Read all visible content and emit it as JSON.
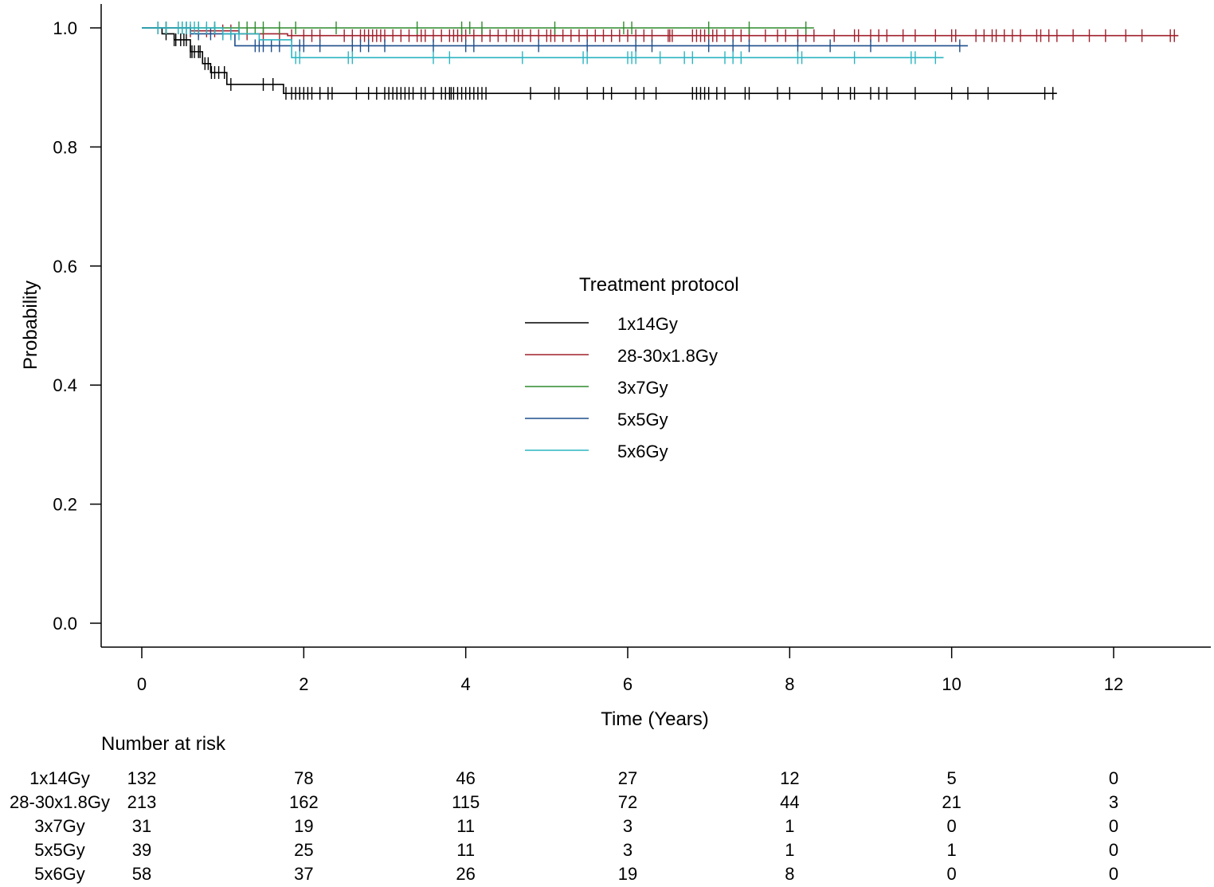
{
  "chart_data": {
    "type": "line",
    "subtype": "kaplan-meier step",
    "xlabel": "Time (Years)",
    "ylabel": "Probability",
    "xlim": [
      -0.5,
      13.2
    ],
    "ylim": [
      -0.04,
      1.04
    ],
    "xticks": [
      0,
      2,
      4,
      6,
      8,
      10,
      12
    ],
    "yticks": [
      0.0,
      0.2,
      0.4,
      0.6,
      0.8,
      1.0
    ],
    "x_tick_labels": [
      "0",
      "2",
      "4",
      "6",
      "8",
      "10",
      "12"
    ],
    "y_tick_labels": [
      "0.0",
      "0.2",
      "0.4",
      "0.6",
      "0.8",
      "1.0"
    ],
    "grid": false,
    "legend": {
      "title": "Treatment protocol",
      "placement": "center"
    },
    "series": [
      {
        "name": "1x14Gy",
        "color": "#000000",
        "steps": [
          [
            0,
            1.0
          ],
          [
            0.25,
            0.99
          ],
          [
            0.4,
            0.98
          ],
          [
            0.6,
            0.96
          ],
          [
            0.75,
            0.94
          ],
          [
            0.85,
            0.925
          ],
          [
            1.05,
            0.905
          ],
          [
            1.75,
            0.89
          ],
          [
            11.3,
            0.89
          ]
        ],
        "censor_times": [
          0.2,
          0.3,
          0.4,
          0.42,
          0.48,
          0.52,
          0.55,
          0.6,
          0.62,
          0.65,
          0.7,
          0.72,
          0.78,
          0.82,
          0.86,
          0.9,
          0.95,
          1.02,
          1.1,
          1.5,
          1.62,
          1.78,
          1.85,
          1.9,
          1.95,
          2.0,
          2.05,
          2.1,
          2.2,
          2.3,
          2.35,
          2.65,
          2.8,
          2.9,
          3.0,
          3.05,
          3.1,
          3.15,
          3.2,
          3.25,
          3.3,
          3.35,
          3.45,
          3.5,
          3.6,
          3.7,
          3.75,
          3.8,
          3.82,
          3.85,
          3.9,
          3.95,
          4.0,
          4.05,
          4.1,
          4.15,
          4.2,
          4.25,
          4.8,
          5.1,
          5.15,
          5.5,
          5.7,
          5.8,
          6.1,
          6.2,
          6.35,
          6.8,
          6.85,
          6.9,
          6.95,
          7.0,
          7.1,
          7.2,
          7.45,
          7.5,
          7.85,
          8.0,
          8.4,
          8.6,
          8.75,
          8.8,
          9.0,
          9.1,
          9.2,
          9.55,
          10.0,
          10.2,
          10.45,
          11.15,
          11.25
        ]
      },
      {
        "name": "28-30x1.8Gy",
        "color": "#a0202c",
        "steps": [
          [
            0,
            1.0
          ],
          [
            0.6,
            0.995
          ],
          [
            1.2,
            0.99
          ],
          [
            1.8,
            0.987
          ],
          [
            12.8,
            0.987
          ]
        ],
        "censor_times": [
          0.3,
          0.45,
          0.6,
          0.7,
          0.8,
          0.9,
          1.0,
          1.1,
          1.3,
          1.5,
          1.7,
          1.85,
          2.0,
          2.1,
          2.2,
          2.5,
          2.6,
          2.7,
          2.75,
          2.8,
          2.85,
          2.9,
          2.95,
          3.0,
          3.1,
          3.2,
          3.3,
          3.4,
          3.45,
          3.5,
          3.6,
          3.7,
          3.8,
          3.85,
          3.9,
          3.95,
          4.0,
          4.1,
          4.2,
          4.3,
          4.4,
          4.5,
          4.6,
          4.65,
          4.7,
          4.8,
          4.9,
          5.0,
          5.05,
          5.1,
          5.2,
          5.3,
          5.4,
          5.5,
          5.6,
          5.7,
          5.8,
          5.9,
          6.0,
          6.1,
          6.2,
          6.3,
          6.5,
          6.52,
          6.55,
          6.8,
          6.85,
          6.9,
          6.95,
          7.0,
          7.05,
          7.1,
          7.2,
          7.3,
          7.4,
          7.5,
          7.7,
          7.85,
          7.95,
          8.1,
          8.2,
          8.3,
          8.55,
          8.8,
          8.85,
          9.0,
          9.1,
          9.2,
          9.4,
          9.55,
          9.8,
          10.0,
          10.05,
          10.3,
          10.4,
          10.5,
          10.55,
          10.65,
          10.75,
          10.85,
          11.05,
          11.1,
          11.2,
          11.3,
          11.5,
          11.7,
          11.9,
          12.15,
          12.35,
          12.7,
          12.75
        ]
      },
      {
        "name": "3x7Gy",
        "color": "#2e8b2e",
        "steps": [
          [
            0,
            1.0
          ],
          [
            8.3,
            1.0
          ]
        ],
        "censor_times": [
          0.3,
          0.5,
          0.7,
          0.9,
          1.2,
          1.3,
          1.4,
          1.5,
          1.7,
          1.9,
          2.4,
          3.4,
          3.95,
          4.05,
          4.2,
          5.1,
          5.95,
          6.05,
          7.0,
          7.5,
          8.2
        ]
      },
      {
        "name": "5x5Gy",
        "color": "#1f4e8c",
        "steps": [
          [
            0,
            1.0
          ],
          [
            0.6,
            0.99
          ],
          [
            1.15,
            0.97
          ],
          [
            10.2,
            0.97
          ]
        ],
        "censor_times": [
          0.55,
          0.7,
          0.85,
          1.0,
          1.4,
          1.45,
          1.5,
          1.6,
          1.7,
          1.95,
          2.0,
          2.2,
          2.6,
          2.7,
          2.8,
          3.0,
          3.6,
          4.0,
          4.1,
          4.9,
          5.5,
          6.1,
          6.3,
          7.0,
          7.3,
          7.5,
          8.1,
          8.5,
          9.0,
          10.1
        ]
      },
      {
        "name": "5x6Gy",
        "color": "#2bb5c2",
        "steps": [
          [
            0,
            1.0
          ],
          [
            1.0,
            0.99
          ],
          [
            1.45,
            0.98
          ],
          [
            1.85,
            0.95
          ],
          [
            9.9,
            0.95
          ]
        ],
        "censor_times": [
          0.2,
          0.3,
          0.45,
          0.5,
          0.55,
          0.6,
          0.65,
          0.7,
          0.8,
          0.9,
          1.0,
          1.1,
          1.2,
          1.9,
          1.95,
          2.55,
          2.6,
          3.6,
          3.8,
          4.7,
          5.45,
          5.5,
          6.0,
          6.05,
          6.1,
          6.4,
          6.7,
          6.8,
          7.2,
          7.3,
          7.4,
          8.1,
          8.15,
          8.8,
          9.5,
          9.55,
          9.8
        ]
      }
    ]
  },
  "risk_table": {
    "title": "Number at risk",
    "times": [
      0,
      2,
      4,
      6,
      8,
      10,
      12
    ],
    "rows": [
      {
        "label": "1x14Gy",
        "counts": [
          "132",
          "78",
          "46",
          "27",
          "12",
          "5",
          "0"
        ]
      },
      {
        "label": "28-30x1.8Gy",
        "counts": [
          "213",
          "162",
          "115",
          "72",
          "44",
          "21",
          "3"
        ]
      },
      {
        "label": "3x7Gy",
        "counts": [
          "31",
          "19",
          "11",
          "3",
          "1",
          "0",
          "0"
        ]
      },
      {
        "label": "5x5Gy",
        "counts": [
          "39",
          "25",
          "11",
          "3",
          "1",
          "1",
          "0"
        ]
      },
      {
        "label": "5x6Gy",
        "counts": [
          "58",
          "37",
          "26",
          "19",
          "8",
          "0",
          "0"
        ]
      }
    ]
  }
}
